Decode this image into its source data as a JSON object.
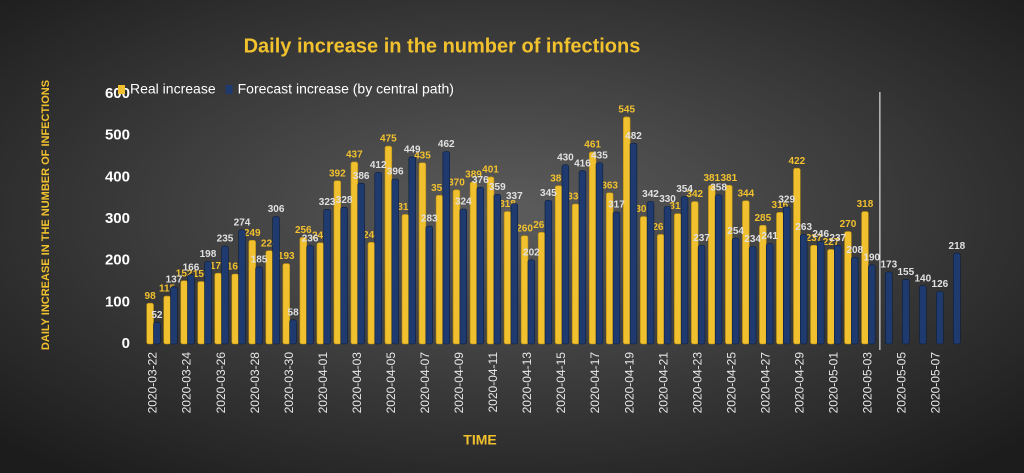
{
  "chart_data": {
    "type": "bar",
    "title": "Daily increase in the number of infections",
    "x_label": "TIME",
    "y_label": "DAILY INCREASE IN THE NUMBER OF INFECTIONS",
    "categories": [
      "2020-03-22",
      null,
      "2020-03-24",
      null,
      "2020-03-26",
      null,
      "2020-03-28",
      null,
      "2020-03-30",
      null,
      "2020-04-01",
      null,
      "2020-04-03",
      null,
      "2020-04-05",
      null,
      "2020-04-07",
      null,
      "2020-04-09",
      null,
      "2020-04-11",
      null,
      "2020-04-13",
      null,
      "2020-04-15",
      null,
      "2020-04-17",
      null,
      "2020-04-19",
      null,
      "2020-04-21",
      null,
      "2020-04-23",
      null,
      "2020-04-25",
      null,
      "2020-04-27",
      null,
      "2020-04-29",
      null,
      "2020-05-01",
      null,
      "2020-05-03",
      null,
      "2020-05-05",
      null,
      "2020-05-07",
      null
    ],
    "series": [
      {
        "name": "Real increase",
        "color": "#f0c02e",
        "values": [
          98,
          115,
          152,
          150,
          170,
          168,
          249,
          224,
          193,
          256,
          243,
          392,
          437,
          244,
          475,
          311,
          435,
          357,
          370,
          389,
          401,
          318,
          260,
          268,
          380,
          336,
          461,
          363,
          545,
          306,
          263,
          313,
          342,
          381,
          381,
          344,
          285,
          316,
          422,
          237,
          227,
          270,
          318,
          null,
          null,
          null,
          null,
          null
        ]
      },
      {
        "name": "Forecast increase (by central path)",
        "color": "#1f3a6e",
        "values": [
          52,
          137,
          166,
          198,
          235,
          274,
          185,
          306,
          58,
          236,
          323,
          328,
          386,
          412,
          396,
          449,
          283,
          462,
          324,
          376,
          359,
          337,
          202,
          345,
          430,
          416,
          435,
          317,
          482,
          342,
          330,
          354,
          237,
          358,
          254,
          234,
          241,
          329,
          263,
          246,
          237,
          208,
          190,
          173,
          155,
          140,
          126,
          218
        ]
      }
    ],
    "ylim": [
      0,
      600
    ],
    "yticks": [
      0,
      100,
      200,
      300,
      400,
      500,
      600
    ],
    "legend": "top-left"
  }
}
